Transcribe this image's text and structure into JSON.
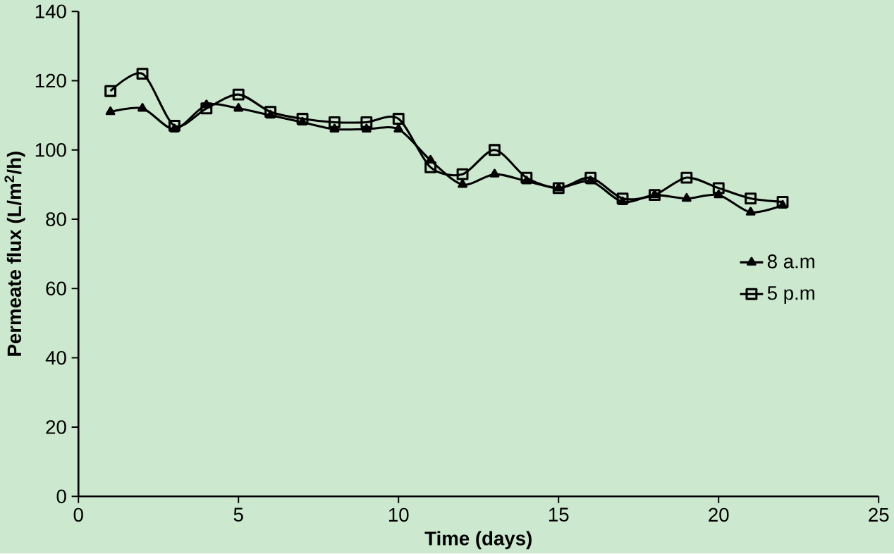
{
  "chart_data": {
    "type": "line",
    "xlabel": "Time (days)",
    "ylabel": "Permeate flux (L/m$^{2}$/h)",
    "x": [
      1,
      2,
      3,
      4,
      5,
      6,
      7,
      8,
      9,
      10,
      11,
      12,
      13,
      14,
      15,
      16,
      17,
      18,
      19,
      20,
      21,
      22
    ],
    "series": [
      {
        "name": "8 a.m",
        "color": "#000000",
        "marker": "triangle",
        "values": [
          111,
          112,
          106,
          113,
          112,
          110,
          108,
          106,
          106,
          106,
          97,
          90,
          93,
          91,
          89,
          91,
          85,
          87,
          86,
          87,
          82,
          84
        ]
      },
      {
        "name": "5 p.m",
        "color": "#000000",
        "marker": "square",
        "values": [
          117,
          122,
          107,
          112,
          116,
          111,
          109,
          108,
          108,
          109,
          95,
          93,
          100,
          92,
          89,
          92,
          86,
          87,
          92,
          89,
          86,
          85
        ]
      }
    ],
    "xlim": [
      0,
      25
    ],
    "xticks": [
      0,
      5,
      10,
      15,
      20,
      25
    ],
    "ylim": [
      0,
      140
    ],
    "yticks": [
      0,
      20,
      40,
      60,
      80,
      100,
      120,
      140
    ],
    "grid": false,
    "legend": "right",
    "line_style": "solid"
  }
}
